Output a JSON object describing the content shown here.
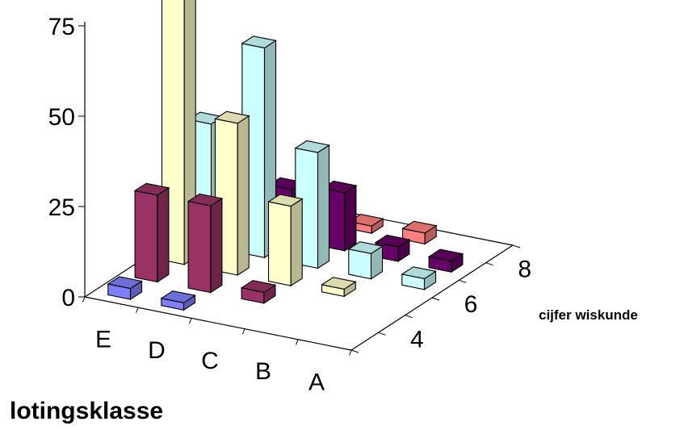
{
  "chart_data": {
    "type": "bar",
    "variant": "3d-column",
    "xlabel": "lotingsklasse",
    "ylabel": "cijfer wiskunde",
    "zlim": [
      0,
      75
    ],
    "z_ticks": [
      "0",
      "25",
      "50",
      "75"
    ],
    "categories": [
      "E",
      "D",
      "C",
      "B",
      "A"
    ],
    "depth_ticks": [
      "4",
      "6",
      "8"
    ],
    "series": [
      {
        "depth": 0,
        "color": "#8080ff",
        "values": [
          3,
          2,
          0,
          0,
          0
        ]
      },
      {
        "depth": 1,
        "color": "#993366",
        "values": [
          24,
          24,
          3,
          0,
          0
        ]
      },
      {
        "depth": 2,
        "color": "#ffffcc",
        "values": [
          76,
          42,
          22,
          2,
          0
        ]
      },
      {
        "depth": 3,
        "color": "#ccffff",
        "values": [
          34,
          58,
          32,
          7,
          3
        ]
      },
      {
        "depth": 4,
        "color": "#660066",
        "values": [
          0,
          14,
          16,
          4,
          3
        ]
      },
      {
        "depth": 5,
        "color": "#ff8080",
        "values": [
          0,
          3,
          2,
          3,
          0
        ]
      }
    ],
    "grid": false,
    "legend": "none"
  }
}
